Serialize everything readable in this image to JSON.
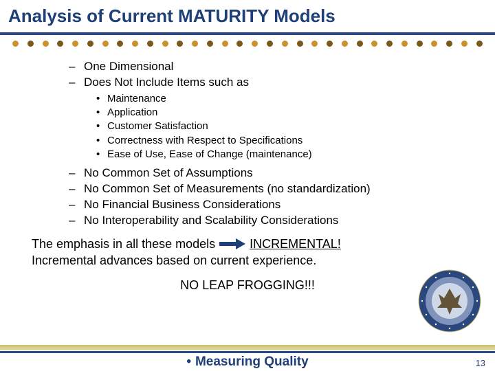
{
  "title": "Analysis of Current MATURITY Models",
  "title_color": "#1f3f77",
  "underline_color": "#2a4a8a",
  "dots": {
    "count": 32,
    "color_a": "#c9922e",
    "color_b": "#7a5a1a"
  },
  "dash_items_top": [
    "One Dimensional",
    "Does Not Include Items such as"
  ],
  "bullet_items": [
    "Maintenance",
    "Application",
    "Customer Satisfaction",
    "Correctness with Respect to Specifications",
    "Ease of Use, Ease of Change (maintenance)"
  ],
  "dash_items_bottom": [
    "No Common Set of Assumptions",
    "No Common Set of Measurements (no standardization)",
    "No Financial Business Considerations",
    "No Interoperability and Scalability Considerations"
  ],
  "emphasis": {
    "prefix": "The emphasis in all these models",
    "arrow_color": "#1f3f77",
    "target": "INCREMENTAL!",
    "line2": "Incremental advances based on current experience."
  },
  "no_leap": "NO LEAP FROGGING!!!",
  "footer": {
    "bullet": "•",
    "text": "Measuring Quality",
    "page": "13",
    "band_color": "#c9c070",
    "stripe_color": "#2a4a8a"
  },
  "seal": {
    "outer": "#1f3f77",
    "inner": "#7a8fb8",
    "center": "#cdd6e6",
    "eagle": "#5a4a2f"
  }
}
